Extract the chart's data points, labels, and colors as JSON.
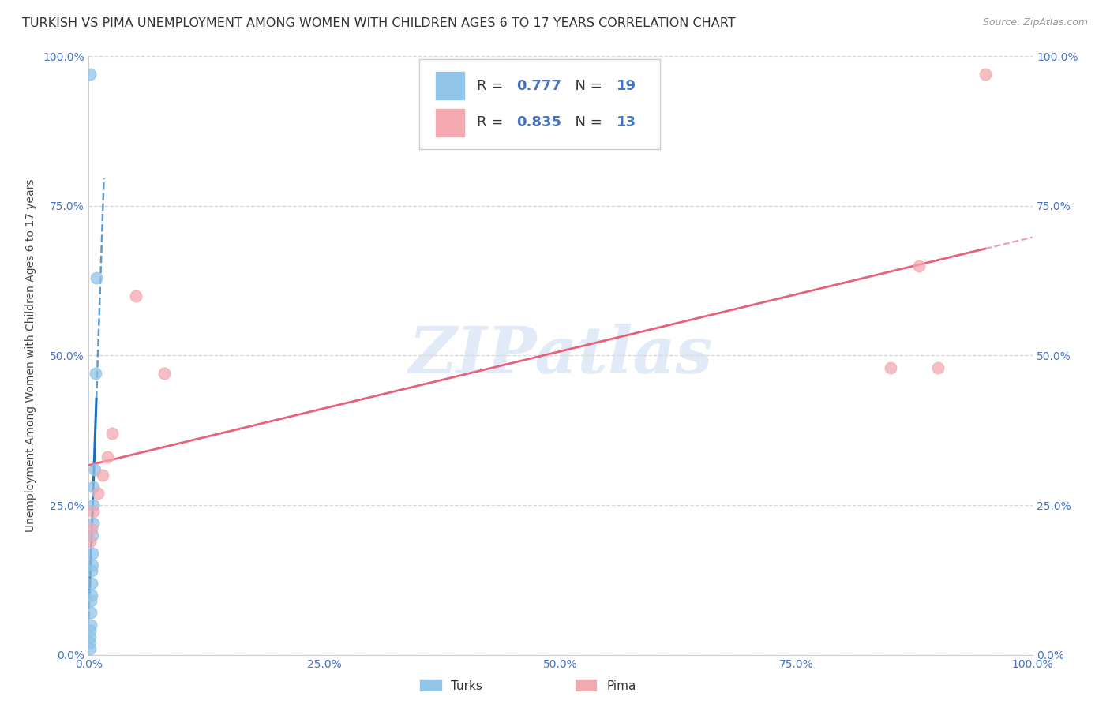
{
  "title": "TURKISH VS PIMA UNEMPLOYMENT AMONG WOMEN WITH CHILDREN AGES 6 TO 17 YEARS CORRELATION CHART",
  "source": "Source: ZipAtlas.com",
  "ylabel": "Unemployment Among Women with Children Ages 6 to 17 years",
  "xlim": [
    0,
    1.0
  ],
  "ylim": [
    0,
    1.0
  ],
  "xtick_vals": [
    0.0,
    0.25,
    0.5,
    0.75,
    1.0
  ],
  "xtick_labels": [
    "0.0%",
    "25.0%",
    "50.0%",
    "75.0%",
    "100.0%"
  ],
  "ytick_vals": [
    0.0,
    0.25,
    0.5,
    0.75,
    1.0
  ],
  "ytick_labels": [
    "0.0%",
    "25.0%",
    "50.0%",
    "75.0%",
    "100.0%"
  ],
  "turks_x": [
    0.001,
    0.001,
    0.001,
    0.001,
    0.002,
    0.002,
    0.002,
    0.003,
    0.003,
    0.003,
    0.004,
    0.004,
    0.004,
    0.005,
    0.005,
    0.005,
    0.006,
    0.007,
    0.008
  ],
  "turks_y": [
    0.01,
    0.02,
    0.03,
    0.04,
    0.05,
    0.07,
    0.09,
    0.1,
    0.12,
    0.14,
    0.15,
    0.17,
    0.2,
    0.22,
    0.25,
    0.28,
    0.31,
    0.47,
    0.63
  ],
  "turks_outlier_x": [
    0.001
  ],
  "turks_outlier_y": [
    0.97
  ],
  "pima_x": [
    0.001,
    0.003,
    0.005,
    0.01,
    0.015,
    0.02,
    0.025,
    0.05,
    0.08,
    0.85,
    0.88,
    0.9,
    0.95
  ],
  "pima_y": [
    0.19,
    0.21,
    0.24,
    0.27,
    0.3,
    0.33,
    0.37,
    0.6,
    0.47,
    0.48,
    0.65,
    0.48,
    0.97
  ],
  "turks_R": "0.777",
  "turks_N": "19",
  "pima_R": "0.835",
  "pima_N": "13",
  "turks_color": "#90c4e8",
  "turks_line_color": "#1a6fbd",
  "pima_color": "#f4a8b0",
  "pima_line_color": "#e8607a",
  "watermark": "ZIPatlas",
  "title_fontsize": 11.5,
  "label_fontsize": 10,
  "tick_fontsize": 10,
  "source_color": "#999999",
  "tick_color": "#4472c4",
  "grid_color": "#d8d8d8"
}
